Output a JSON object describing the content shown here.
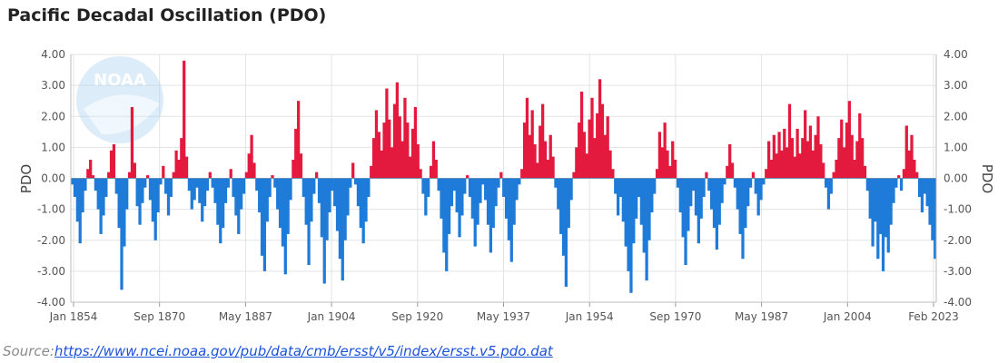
{
  "title": "Pacific Decadal Oscillation (PDO)",
  "source": {
    "label": "Source:",
    "url": "https://www.ncei.noaa.gov/pub/data/cmb/ersst/v5/index/ersst.v5.pdo.dat"
  },
  "logo_text": "NOAA",
  "colors": {
    "positive": "#e31a3d",
    "negative": "#1e7bd8",
    "grid": "#e3e3e3",
    "axis_text": "#555555"
  },
  "chart_data": {
    "type": "bar",
    "title": "Pacific Decadal Oscillation (PDO)",
    "ylabel_left": "PDO",
    "ylabel_right": "PDO",
    "ylim": [
      -4,
      4
    ],
    "yticks": [
      "4.00",
      "3.00",
      "2.00",
      "1.00",
      "0.00",
      "-1.00",
      "-2.00",
      "-3.00",
      "-4.00"
    ],
    "xticks": [
      "Jan 1854",
      "Sep 1870",
      "May 1887",
      "Jan 1904",
      "Sep 1920",
      "May 1937",
      "Jan 1954",
      "Sep 1970",
      "May 1987",
      "Jan 2004",
      "Feb 2023"
    ],
    "grid": true,
    "series_name": "PDO",
    "x_range": [
      "1854-01",
      "2023-02"
    ],
    "values": [
      -0.2,
      -0.6,
      -1.4,
      -2.1,
      -1.1,
      -0.4,
      0.3,
      0.6,
      0.1,
      -0.4,
      -1.0,
      -1.8,
      -1.2,
      -0.6,
      0.2,
      0.9,
      1.1,
      -0.5,
      -1.6,
      -3.6,
      -2.2,
      -1.0,
      0.2,
      2.3,
      0.5,
      -0.9,
      -1.5,
      -0.8,
      -0.3,
      0.1,
      -0.7,
      -1.4,
      -2.0,
      -1.1,
      -0.2,
      0.4,
      -0.5,
      -1.2,
      -0.6,
      0.2,
      0.9,
      0.6,
      1.3,
      3.8,
      0.7,
      -0.4,
      -1.0,
      -0.7,
      -0.3,
      -0.8,
      -1.4,
      -0.9,
      -0.4,
      0.2,
      -0.3,
      -0.8,
      -1.5,
      -2.1,
      -1.6,
      -0.8,
      -0.3,
      0.3,
      -0.6,
      -1.2,
      -1.8,
      -1.0,
      -0.5,
      0.2,
      0.8,
      1.4,
      0.5,
      -0.4,
      -1.1,
      -2.5,
      -3.0,
      -1.4,
      -0.6,
      0.1,
      -0.3,
      -1.0,
      -1.6,
      -2.2,
      -3.1,
      -1.8,
      -0.7,
      0.6,
      1.6,
      2.5,
      0.8,
      -0.6,
      -1.5,
      -2.8,
      -1.4,
      -0.5,
      0.2,
      -0.8,
      -1.9,
      -3.4,
      -2.0,
      -1.1,
      -0.4,
      -0.9,
      -1.7,
      -2.6,
      -3.3,
      -2.0,
      -1.2,
      -0.3,
      0.5,
      -0.2,
      -0.9,
      -1.6,
      -2.1,
      -1.4,
      -0.6,
      0.4,
      1.3,
      2.2,
      1.5,
      0.9,
      1.8,
      2.9,
      1.9,
      1.0,
      2.4,
      3.1,
      2.0,
      1.2,
      2.6,
      1.8,
      0.7,
      1.6,
      2.3,
      1.1,
      0.3,
      -0.5,
      -1.2,
      -0.6,
      0.4,
      1.2,
      0.6,
      -0.4,
      -1.3,
      -2.4,
      -3.0,
      -1.8,
      -0.9,
      -0.4,
      -1.1,
      -1.9,
      -1.2,
      -0.5,
      0.1,
      -0.6,
      -1.3,
      -2.2,
      -1.5,
      -0.8,
      -0.2,
      -0.7,
      -1.5,
      -2.4,
      -1.6,
      -0.9,
      -0.3,
      0.2,
      -0.6,
      -1.3,
      -2.0,
      -2.7,
      -1.5,
      -0.7,
      -0.2,
      0.3,
      1.8,
      2.6,
      1.4,
      2.2,
      1.1,
      0.5,
      1.7,
      2.4,
      1.2,
      0.6,
      1.4,
      0.7,
      -0.3,
      -1.0,
      -1.8,
      -2.5,
      -3.5,
      -1.6,
      -0.7,
      0.2,
      1.0,
      1.8,
      2.8,
      1.5,
      0.8,
      1.9,
      2.6,
      1.3,
      2.1,
      3.2,
      2.4,
      1.4,
      2.0,
      0.9,
      0.3,
      -0.5,
      -1.2,
      -0.6,
      -1.4,
      -2.2,
      -3.0,
      -3.7,
      -2.1,
      -1.3,
      -0.6,
      -1.5,
      -2.4,
      -3.3,
      -2.0,
      -1.1,
      -0.5,
      0.3,
      1.5,
      1.0,
      1.8,
      0.9,
      0.4,
      1.2,
      0.6,
      -0.3,
      -1.1,
      -1.9,
      -2.8,
      -1.7,
      -0.9,
      -0.4,
      -1.2,
      -2.1,
      -1.3,
      -0.6,
      0.2,
      -0.4,
      -1.0,
      -1.6,
      -2.3,
      -1.5,
      -0.8,
      -0.2,
      0.4,
      1.1,
      0.5,
      -0.3,
      -1.0,
      -1.8,
      -2.6,
      -1.6,
      -0.9,
      -0.3,
      0.2,
      -0.5,
      -1.2,
      -0.7,
      -0.2,
      0.3,
      1.2,
      0.6,
      1.4,
      0.8,
      1.5,
      0.9,
      1.6,
      1.0,
      2.4,
      1.3,
      0.7,
      1.6,
      0.8,
      1.3,
      2.2,
      1.2,
      1.7,
      0.9,
      1.4,
      2.0,
      1.1,
      0.5,
      -0.3,
      -1.0,
      -0.5,
      0.2,
      0.6,
      1.3,
      1.9,
      1.0,
      1.8,
      2.5,
      1.4,
      0.6,
      1.2,
      2.1,
      1.3,
      0.4,
      -0.4,
      -1.3,
      -2.2,
      -1.4,
      -2.6,
      -1.8,
      -3.0,
      -1.9,
      -2.4,
      -1.5,
      -0.8,
      -0.3,
      0.1,
      -0.4,
      0.3,
      1.7,
      0.9,
      1.4,
      0.6,
      0.2,
      -0.6,
      -1.1,
      -0.5,
      -0.9,
      -1.5,
      -2.0,
      -2.6
    ]
  }
}
